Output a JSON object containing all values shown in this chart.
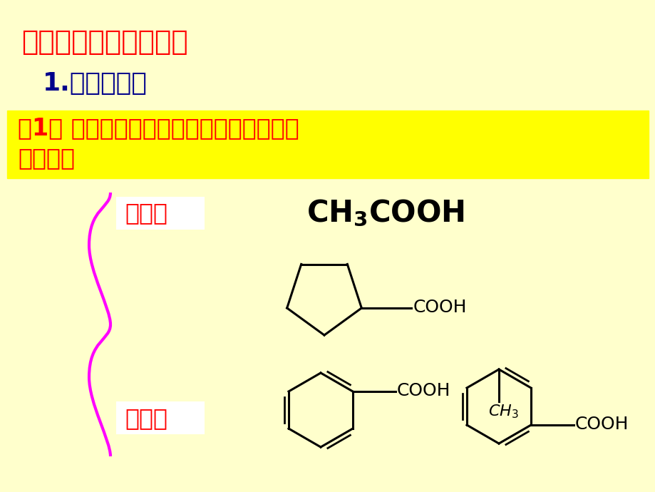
{
  "bg_color": "#FFFFCC",
  "title1": "一、羧酸的分类和命名",
  "title1_color": "#FF0000",
  "title1_fontsize": 28,
  "title2": "1.羧酸的分类",
  "title2_color": "#00008B",
  "title2_fontsize": 26,
  "highlight_bg": "#FFFF00",
  "highlight_text1": "（1） 根据羧酸分子中羧基相连的烃基种类",
  "highlight_text2": "不同分：",
  "highlight_color": "#FF0000",
  "highlight_fontsize": 24,
  "label1": "脂肪酸",
  "label2": "芳香酸",
  "label_color": "#FF0000",
  "label_fontsize": 24,
  "label_bg": "#FFFFFF",
  "formula1": "CH",
  "formula1_sub": "3",
  "formula1_rest": "COOH",
  "brace_color": "#FF00FF"
}
